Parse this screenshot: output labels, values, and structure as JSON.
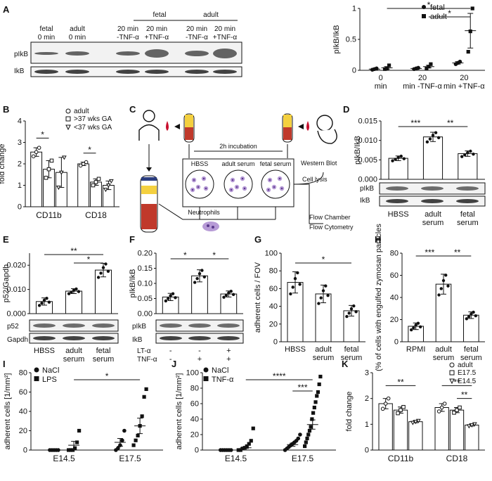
{
  "panels": {
    "A": {
      "label": "A",
      "blot": {
        "group_fetal": "fetal",
        "group_adult": "adult",
        "lanes": [
          {
            "l1": "fetal",
            "l2": "0 min"
          },
          {
            "l1": "adult",
            "l2": "0 min"
          },
          {
            "l1": "20 min",
            "l2": "-TNF-α"
          },
          {
            "l1": "20 min",
            "l2": "+TNF-α"
          },
          {
            "l1": "20 min",
            "l2": "-TNF-α"
          },
          {
            "l1": "20 min",
            "l2": "+TNF-α"
          }
        ],
        "row1": "pIkB",
        "row2": "IkB"
      },
      "legend": [
        "fetal",
        "adult"
      ],
      "sig": [
        "*",
        "*"
      ]
    },
    "B": {
      "label": "B",
      "legend": [
        "adult",
        ">37 wks GA",
        "<37 wks GA"
      ],
      "sig": [
        "*",
        "*"
      ]
    },
    "C": {
      "label": "C",
      "incubation": "2h incubation",
      "wells": [
        "HBSS",
        "adult serum",
        "fetal serum"
      ],
      "western": "Western Blot",
      "lysis": "Cell lysis",
      "neutrophils": "Neutrophils",
      "flow1": "Flow Chamber",
      "flow2": "Flow Cytometry"
    },
    "D": {
      "label": "D",
      "row1": "pIkB",
      "row2": "IkB",
      "sig": [
        "***",
        "**"
      ]
    },
    "E": {
      "label": "E",
      "row1": "p52",
      "row2": "Gapdh",
      "sig": [
        "**",
        "*"
      ]
    },
    "F": {
      "label": "F",
      "row1": "pIkB",
      "row2": "IkB",
      "lt": "LT-α",
      "tnf": "TNF-α",
      "lt_signs": [
        "-",
        "-",
        "+"
      ],
      "tnf_signs": [
        "-",
        "+",
        "+"
      ],
      "sig": [
        "*",
        "*"
      ]
    },
    "G": {
      "label": "G",
      "sig": [
        "*"
      ]
    },
    "H": {
      "label": "H",
      "sig": [
        "***",
        "**"
      ]
    },
    "I": {
      "label": "I",
      "legend": [
        "NaCl",
        "LPS"
      ],
      "sig": [
        "*"
      ]
    },
    "J": {
      "label": "J",
      "legend": [
        "NaCl",
        "TNF-α"
      ],
      "sig": [
        "****",
        "***"
      ]
    },
    "K": {
      "label": "K",
      "legend": [
        "adult",
        "E17.5",
        "E14.5"
      ],
      "sig": [
        "**",
        "**",
        "**"
      ]
    }
  },
  "chart_data": [
    {
      "panel": "A",
      "type": "scatter",
      "categories": [
        "0 min",
        "20 min -TNF-α",
        "20 min +TNF-α"
      ],
      "ylabel": "pIkB/IkB",
      "ylim": [
        0,
        1.0
      ],
      "yticks": [
        0,
        0.5,
        1.0
      ],
      "ytick_labels": [
        "0",
        "0.5",
        "1"
      ],
      "series": [
        {
          "name": "fetal",
          "mean": [
            0.02,
            0.03,
            0.12
          ],
          "sem": [
            0.01,
            0.01,
            0.02
          ],
          "points": [
            [
              0.01,
              0.02,
              0.03
            ],
            [
              0.02,
              0.03,
              0.04
            ],
            [
              0.1,
              0.12,
              0.14
            ]
          ]
        },
        {
          "name": "adult",
          "mean": [
            0.04,
            0.06,
            0.64
          ],
          "sem": [
            0.02,
            0.02,
            0.28
          ],
          "points": [
            [
              0.02,
              0.03,
              0.08
            ],
            [
              0.03,
              0.06,
              0.1
            ],
            [
              0.3,
              0.63,
              1.0
            ]
          ]
        }
      ]
    },
    {
      "panel": "B",
      "type": "bar",
      "categories": [
        "CD11b",
        "CD18"
      ],
      "ylabel": "fold change",
      "ylim": [
        0,
        4
      ],
      "yticks": [
        0,
        1,
        2,
        3,
        4
      ],
      "series": [
        {
          "name": "adult",
          "values": [
            2.55,
            2.0
          ],
          "sem": [
            0.2,
            0.08
          ]
        },
        {
          "name": ">37 wks GA",
          "values": [
            1.75,
            1.15
          ],
          "sem": [
            0.4,
            0.15
          ]
        },
        {
          "name": "<37 wks GA",
          "values": [
            1.6,
            1.0
          ],
          "sem": [
            0.7,
            0.2
          ]
        }
      ]
    },
    {
      "panel": "D",
      "type": "bar",
      "categories": [
        "HBSS",
        "adult serum",
        "fetal serum"
      ],
      "ylabel": "pIkB/IkB",
      "ylim": [
        0,
        0.015
      ],
      "yticks": [
        0,
        0.005,
        0.01,
        0.015
      ],
      "ytick_labels": [
        "0.000",
        "0.005",
        "0.010",
        "0.015"
      ],
      "values": [
        0.0054,
        0.0109,
        0.0066
      ],
      "sem": [
        0.0006,
        0.0012,
        0.0007
      ]
    },
    {
      "panel": "E",
      "type": "bar",
      "categories": [
        "HBSS",
        "adult serum",
        "fetal serum"
      ],
      "ylabel": "p52/Gapdh",
      "ylim": [
        0,
        0.025
      ],
      "yticks": [
        0,
        0.01,
        0.02
      ],
      "ytick_labels": [
        "0.000",
        "0.010",
        "0.020"
      ],
      "values": [
        0.005,
        0.0093,
        0.018
      ],
      "sem": [
        0.0015,
        0.001,
        0.0028
      ]
    },
    {
      "panel": "F",
      "type": "bar",
      "ylabel": "pIkB/IkB",
      "ylim": [
        0,
        0.2
      ],
      "yticks": [
        0,
        0.05,
        0.1,
        0.15,
        0.2
      ],
      "ytick_labels": [
        "0.00",
        "0.05",
        "0.10",
        "0.15",
        "0.20"
      ],
      "values": [
        0.055,
        0.125,
        0.065
      ],
      "sem": [
        0.012,
        0.02,
        0.01
      ]
    },
    {
      "panel": "G",
      "type": "bar",
      "categories": [
        "HBSS",
        "adult serum",
        "fetal serum"
      ],
      "ylabel": "adherent cells / FOV",
      "ylim": [
        0,
        100
      ],
      "yticks": [
        0,
        20,
        40,
        60,
        80,
        100
      ],
      "values": [
        67,
        54,
        35
      ],
      "sem": [
        12,
        10,
        6
      ]
    },
    {
      "panel": "H",
      "type": "bar",
      "categories": [
        "RPMI",
        "adult serum",
        "fetal serum"
      ],
      "ylabel": "(% of cells with engulfed zymosan particles",
      "ylim": [
        0,
        80
      ],
      "yticks": [
        0,
        20,
        40,
        60,
        80
      ],
      "values": [
        14,
        52,
        24
      ],
      "sem": [
        3,
        9,
        3
      ]
    },
    {
      "panel": "I",
      "type": "scatter",
      "categories": [
        "E14.5",
        "E17.5"
      ],
      "ylabel": "adherent cells [1/mm²]",
      "ylim": [
        0,
        80
      ],
      "yticks": [
        0,
        20,
        40,
        60,
        80
      ],
      "series": [
        {
          "name": "NaCl",
          "mean": [
            0,
            8
          ],
          "sem": [
            0,
            4
          ],
          "points": [
            [
              0,
              0,
              0,
              0,
              0
            ],
            [
              0,
              2,
              5,
              10,
              20
            ]
          ]
        },
        {
          "name": "LPS",
          "mean": [
            5,
            25
          ],
          "sem": [
            4,
            8
          ],
          "points": [
            [
              0,
              0,
              0,
              2,
              8,
              20
            ],
            [
              5,
              10,
              15,
              25,
              35,
              55,
              63
            ]
          ]
        }
      ]
    },
    {
      "panel": "J",
      "type": "scatter",
      "categories": [
        "E14.5",
        "E17.5"
      ],
      "ylabel": "adherent cells [1/mm²]",
      "ylim": [
        0,
        100
      ],
      "yticks": [
        0,
        20,
        40,
        60,
        80,
        100
      ],
      "series": [
        {
          "name": "NaCl",
          "mean": [
            0,
            7
          ],
          "sem": [
            0,
            2
          ],
          "points": [
            [
              0,
              0,
              0,
              0,
              0,
              0
            ],
            [
              0,
              2,
              4,
              6,
              8,
              10,
              12,
              15,
              20
            ]
          ]
        },
        {
          "name": "TNF-α",
          "mean": [
            3,
            33
          ],
          "sem": [
            1,
            6
          ],
          "points": [
            [
              0,
              0,
              2,
              3,
              5,
              8,
              12,
              28
            ],
            [
              5,
              10,
              15,
              20,
              25,
              30,
              40,
              48,
              55,
              62,
              70,
              75,
              85,
              95
            ]
          ]
        }
      ]
    },
    {
      "panel": "K",
      "type": "bar",
      "categories": [
        "CD11b",
        "CD18"
      ],
      "ylabel": "fold change",
      "ylim": [
        0,
        3
      ],
      "yticks": [
        0,
        1,
        2,
        3
      ],
      "series": [
        {
          "name": "adult",
          "values": [
            1.8,
            1.65
          ],
          "sem": [
            0.2,
            0.15
          ]
        },
        {
          "name": "E17.5",
          "values": [
            1.55,
            1.55
          ],
          "sem": [
            0.12,
            0.1
          ]
        },
        {
          "name": "E14.5",
          "values": [
            1.1,
            0.97
          ],
          "sem": [
            0.04,
            0.04
          ]
        }
      ]
    }
  ]
}
